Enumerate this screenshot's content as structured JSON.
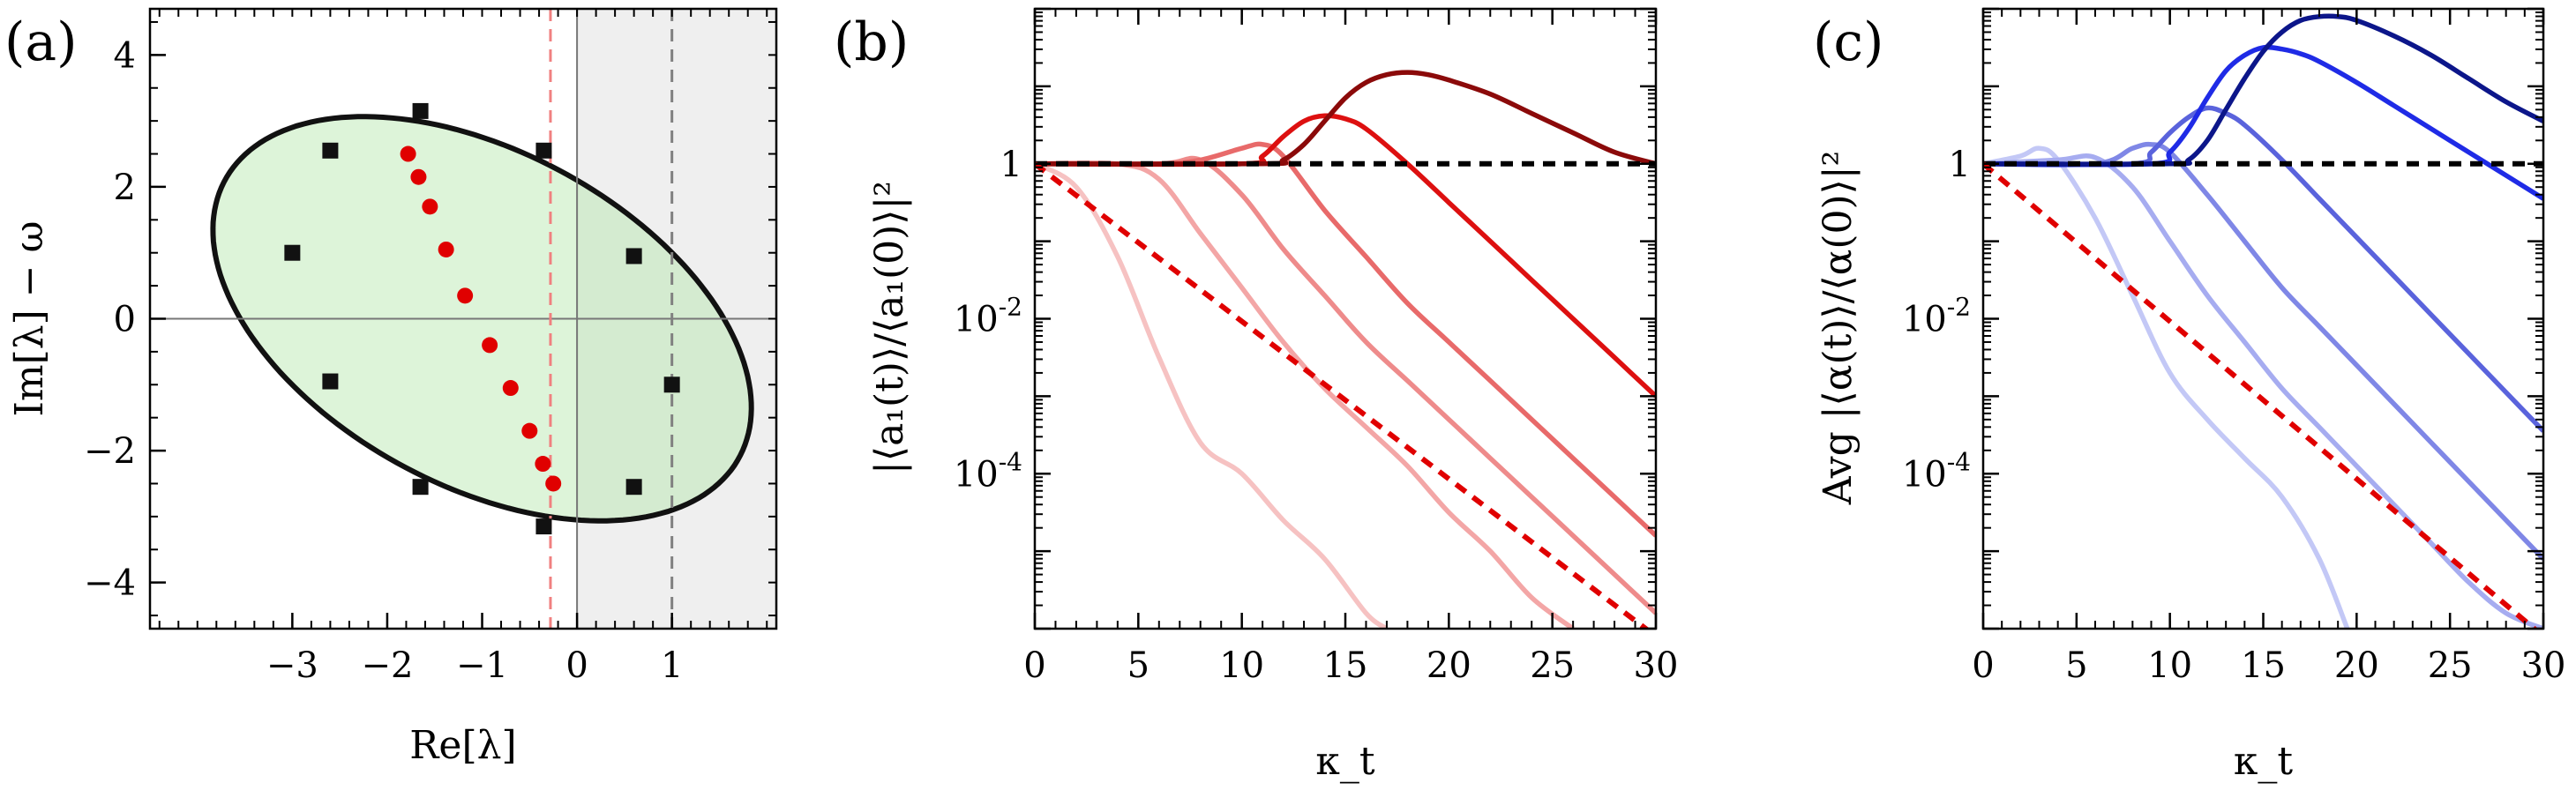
{
  "chart_data": [
    {
      "panel": "(a)",
      "type": "scatter",
      "xlabel": "Re[λ]",
      "ylabel": "Im[λ] − ω",
      "xlim": [
        -4.5,
        2.1
      ],
      "ylim": [
        -4.7,
        4.7
      ],
      "xticks": [
        -3,
        -2,
        -1,
        0,
        1
      ],
      "yticks": [
        -4,
        -2,
        0,
        2,
        4
      ],
      "ellipse": {
        "center": [
          -1.0,
          0.0
        ],
        "semi_major": 3.55,
        "semi_minor": 2.2,
        "angle_deg": -50
      },
      "shaded_region_x_from": 0,
      "vlines": [
        {
          "x": -0.28,
          "color": "#f08080",
          "style": "dashed"
        },
        {
          "x": 1.0,
          "color": "#808080",
          "style": "dashed"
        }
      ],
      "series": [
        {
          "name": "boundary squares",
          "marker": "square",
          "color": "#111111",
          "x": [
            -1.65,
            -0.35,
            0.6,
            1.0,
            0.6,
            -0.35,
            -1.65,
            -2.6,
            -3.0,
            -2.6
          ],
          "y": [
            3.15,
            2.55,
            0.95,
            -1.0,
            -2.55,
            -3.15,
            -2.55,
            -0.95,
            1.0,
            2.55
          ]
        },
        {
          "name": "eigenvalues",
          "marker": "circle",
          "color": "#e00000",
          "x": [
            -1.78,
            -1.67,
            -1.55,
            -1.38,
            -1.18,
            -0.92,
            -0.7,
            -0.5,
            -0.36,
            -0.25
          ],
          "y": [
            2.5,
            2.15,
            1.7,
            1.05,
            0.35,
            -0.4,
            -1.05,
            -1.7,
            -2.2,
            -2.5
          ]
        }
      ]
    },
    {
      "panel": "(b)",
      "type": "line",
      "xlabel": "κ_t",
      "ylabel": "|⟨a₁(t)⟩/⟨a₁(0)⟩|²",
      "xlim": [
        0,
        30
      ],
      "ylim_log10": [
        -6,
        2
      ],
      "xticks": [
        0,
        5,
        10,
        15,
        20,
        25,
        30
      ],
      "yticks": [
        {
          "log10": 0,
          "label": "1"
        },
        {
          "log10": -2,
          "label": "10",
          "exp": "-2"
        },
        {
          "log10": -4,
          "label": "10",
          "exp": "-4"
        }
      ],
      "series": [
        {
          "name": "curve-1",
          "color": "#f6c2c2",
          "x": [
            0,
            2,
            4,
            6,
            8,
            10,
            12,
            14,
            16,
            17
          ],
          "log10y": [
            0,
            -0.3,
            -1.2,
            -2.5,
            -3.6,
            -4.0,
            -4.6,
            -5.1,
            -5.8,
            -6.0
          ]
        },
        {
          "name": "curve-2",
          "color": "#f3a6a6",
          "x": [
            0,
            4,
            6,
            8,
            10,
            12,
            14,
            16,
            18,
            20,
            22,
            24,
            26
          ],
          "log10y": [
            0,
            0,
            -0.2,
            -0.9,
            -1.6,
            -2.3,
            -2.9,
            -3.4,
            -3.9,
            -4.5,
            -5.0,
            -5.6,
            -6.0
          ]
        },
        {
          "name": "curve-3",
          "color": "#ee8b8b",
          "x": [
            0,
            6,
            8,
            10,
            12,
            14,
            16,
            18,
            20,
            22,
            24,
            26,
            28,
            30
          ],
          "log10y": [
            0,
            0,
            0.05,
            -0.4,
            -1.1,
            -1.7,
            -2.3,
            -2.8,
            -3.3,
            -3.8,
            -4.3,
            -4.8,
            -5.3,
            -5.8
          ]
        },
        {
          "name": "curve-4",
          "color": "#e86a6a",
          "x": [
            0,
            6,
            8,
            10,
            11,
            12,
            14,
            16,
            18,
            20,
            22,
            24,
            26,
            28,
            30
          ],
          "log10y": [
            0,
            0,
            0.05,
            0.2,
            0.25,
            0.1,
            -0.6,
            -1.2,
            -1.8,
            -2.3,
            -2.8,
            -3.3,
            -3.8,
            -4.3,
            -4.8
          ]
        },
        {
          "name": "curve-5",
          "color": "#dd1010",
          "x": [
            0,
            10,
            11,
            12,
            13,
            14,
            15,
            16,
            18,
            20,
            22,
            24,
            26,
            28,
            30
          ],
          "log10y": [
            0,
            0,
            0.1,
            0.35,
            0.55,
            0.62,
            0.58,
            0.45,
            0.0,
            -0.5,
            -1.0,
            -1.5,
            -2.0,
            -2.5,
            -3.0
          ]
        },
        {
          "name": "curve-6",
          "color": "#8b0a0a",
          "x": [
            0,
            11,
            12,
            13,
            14,
            15,
            16,
            17,
            18,
            19,
            20,
            22,
            24,
            26,
            28,
            30
          ],
          "log10y": [
            0,
            0,
            0.05,
            0.25,
            0.55,
            0.85,
            1.05,
            1.15,
            1.18,
            1.15,
            1.08,
            0.9,
            0.65,
            0.4,
            0.15,
            0.0
          ]
        },
        {
          "name": "reference-black",
          "color": "#000000",
          "dashed": true,
          "x": [
            0,
            30
          ],
          "log10y": [
            0,
            0
          ]
        },
        {
          "name": "reference-red",
          "color": "#e00000",
          "dashed": true,
          "x": [
            0,
            30
          ],
          "log10y": [
            0,
            -6.1
          ]
        }
      ]
    },
    {
      "panel": "(c)",
      "type": "line",
      "xlabel": "κ_t",
      "ylabel": "Avg |⟨α(t)⟩/⟨α(0)⟩|²",
      "xlim": [
        0,
        30
      ],
      "ylim_log10": [
        -6,
        2
      ],
      "xticks": [
        0,
        5,
        10,
        15,
        20,
        25,
        30
      ],
      "yticks": [
        {
          "log10": 0,
          "label": "1"
        },
        {
          "log10": -2,
          "label": "10",
          "exp": "-2"
        },
        {
          "log10": -4,
          "label": "10",
          "exp": "-4"
        }
      ],
      "series": [
        {
          "name": "curve-1",
          "color": "#c3c8f6",
          "x": [
            0,
            2,
            3,
            4,
            6,
            8,
            10,
            12,
            14,
            16,
            18,
            19.5
          ],
          "log10y": [
            0,
            0.1,
            0.2,
            0.05,
            -0.7,
            -1.7,
            -2.7,
            -3.3,
            -3.8,
            -4.3,
            -5.1,
            -6.0
          ]
        },
        {
          "name": "curve-2",
          "color": "#a6acf0",
          "x": [
            0,
            4,
            6,
            8,
            10,
            12,
            14,
            16,
            18,
            20,
            22,
            24,
            26,
            28,
            30
          ],
          "log10y": [
            0,
            0.05,
            0.08,
            -0.3,
            -1.0,
            -1.7,
            -2.3,
            -2.9,
            -3.4,
            -3.9,
            -4.4,
            -4.9,
            -5.4,
            -5.8,
            -6.0
          ]
        },
        {
          "name": "curve-3",
          "color": "#7f87e6",
          "x": [
            0,
            6,
            8,
            9,
            10,
            12,
            14,
            16,
            18,
            20,
            22,
            24,
            26,
            28,
            30
          ],
          "log10y": [
            0,
            0,
            0.2,
            0.25,
            0.15,
            -0.4,
            -1.0,
            -1.6,
            -2.1,
            -2.6,
            -3.1,
            -3.6,
            -4.1,
            -4.6,
            -5.1
          ]
        },
        {
          "name": "curve-4",
          "color": "#5a63dc",
          "x": [
            0,
            8,
            9,
            10,
            11,
            12,
            13,
            14,
            16,
            18,
            20,
            22,
            24,
            26,
            28,
            30
          ],
          "log10y": [
            0,
            0,
            0.15,
            0.4,
            0.6,
            0.72,
            0.65,
            0.5,
            0.05,
            -0.45,
            -0.95,
            -1.45,
            -1.95,
            -2.45,
            -2.95,
            -3.45
          ]
        },
        {
          "name": "curve-5",
          "color": "#1f2be6",
          "x": [
            0,
            9,
            10,
            11,
            12,
            13,
            14,
            15,
            16,
            17,
            18,
            20,
            22,
            24,
            26,
            28,
            30
          ],
          "log10y": [
            0,
            0,
            0.15,
            0.45,
            0.85,
            1.2,
            1.4,
            1.5,
            1.48,
            1.42,
            1.32,
            1.05,
            0.75,
            0.45,
            0.15,
            -0.15,
            -0.45
          ]
        },
        {
          "name": "curve-6",
          "color": "#0c168a",
          "x": [
            0,
            10,
            11,
            12,
            13,
            14,
            15,
            16,
            17,
            18,
            19,
            20,
            22,
            24,
            26,
            28,
            30
          ],
          "log10y": [
            0,
            0,
            0.05,
            0.3,
            0.7,
            1.1,
            1.45,
            1.7,
            1.85,
            1.9,
            1.9,
            1.85,
            1.65,
            1.4,
            1.1,
            0.8,
            0.55
          ]
        },
        {
          "name": "reference-black",
          "color": "#000000",
          "dashed": true,
          "x": [
            0,
            30
          ],
          "log10y": [
            0,
            0
          ]
        },
        {
          "name": "reference-red",
          "color": "#e00000",
          "dashed": true,
          "x": [
            0,
            30
          ],
          "log10y": [
            0,
            -6.1
          ]
        }
      ]
    }
  ]
}
